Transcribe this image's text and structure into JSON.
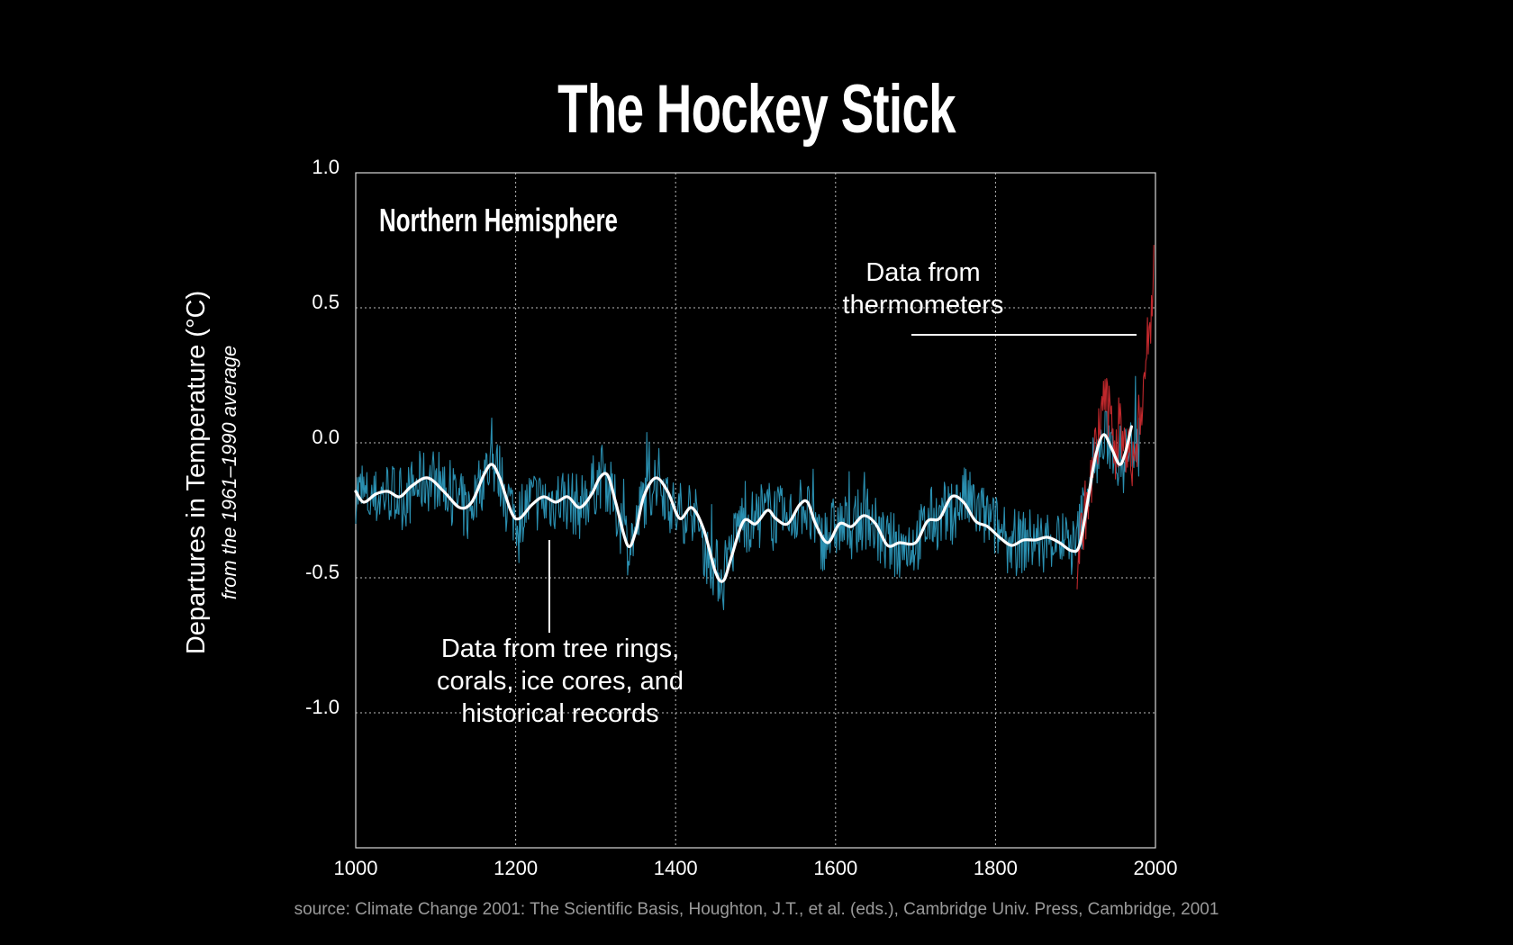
{
  "chart_data": {
    "type": "line",
    "title": "The Hockey Stick",
    "region_label": "Northern Hemisphere",
    "ylabel": "Departures in Temperature (°C)",
    "ylabel_sub": "from the 1961–1990 average",
    "xlim": [
      1000,
      2000
    ],
    "ylim": [
      -1.5,
      1.0
    ],
    "x_ticks": [
      1000,
      1200,
      1400,
      1600,
      1800,
      2000
    ],
    "y_ticks": [
      {
        "value": 1.0,
        "label": "1.0"
      },
      {
        "value": 0.5,
        "label": "0.5"
      },
      {
        "value": 0.0,
        "label": "0.0"
      },
      {
        "value": -0.5,
        "label": "-0.5"
      },
      {
        "value": -1.0,
        "label": "-1.0"
      }
    ],
    "grid": true,
    "annotations": {
      "proxy": [
        "Data from tree rings,",
        "corals, ice cores, and",
        "historical records"
      ],
      "thermo": [
        "Data from",
        "thermometers"
      ]
    },
    "series": [
      {
        "color": "#2a8fb0",
        "style": "noisy-annual",
        "x": [
          1000,
          1020,
          1040,
          1060,
          1080,
          1100,
          1120,
          1140,
          1160,
          1170,
          1180,
          1200,
          1220,
          1240,
          1260,
          1280,
          1300,
          1310,
          1320,
          1340,
          1350,
          1360,
          1380,
          1400,
          1420,
          1440,
          1460,
          1480,
          1500,
          1520,
          1540,
          1560,
          1580,
          1600,
          1620,
          1640,
          1660,
          1680,
          1700,
          1720,
          1740,
          1760,
          1780,
          1800,
          1820,
          1840,
          1860,
          1880,
          1900,
          1920,
          1940,
          1960,
          1980
        ],
        "y": [
          -0.18,
          -0.22,
          -0.18,
          -0.21,
          -0.15,
          -0.13,
          -0.19,
          -0.26,
          -0.12,
          -0.07,
          -0.12,
          -0.28,
          -0.21,
          -0.22,
          -0.2,
          -0.24,
          -0.15,
          -0.11,
          -0.2,
          -0.37,
          -0.33,
          -0.2,
          -0.13,
          -0.27,
          -0.24,
          -0.42,
          -0.51,
          -0.29,
          -0.29,
          -0.25,
          -0.3,
          -0.22,
          -0.37,
          -0.31,
          -0.31,
          -0.27,
          -0.37,
          -0.38,
          -0.37,
          -0.28,
          -0.28,
          -0.2,
          -0.26,
          -0.31,
          -0.38,
          -0.36,
          -0.36,
          -0.35,
          -0.4,
          -0.1,
          0.02,
          -0.07,
          0.05
        ]
      },
      {
        "color": "#c0282c",
        "style": "noisy-annual",
        "x": [
          1902,
          1910,
          1920,
          1930,
          1936,
          1940,
          1946,
          1950,
          1956,
          1960,
          1966,
          1970,
          1976,
          1980,
          1986,
          1990,
          1995,
          1998
        ],
        "y": [
          -0.45,
          -0.28,
          -0.15,
          0.05,
          0.2,
          0.1,
          0.12,
          -0.05,
          0.1,
          -0.05,
          0.05,
          -0.1,
          -0.05,
          0.1,
          0.25,
          0.35,
          0.5,
          0.7
        ]
      },
      {
        "color": "#ffffff",
        "style": "smooth",
        "x": [
          1000,
          1010,
          1025,
          1040,
          1055,
          1070,
          1090,
          1110,
          1130,
          1145,
          1160,
          1170,
          1180,
          1195,
          1205,
          1220,
          1235,
          1250,
          1265,
          1280,
          1295,
          1305,
          1315,
          1325,
          1340,
          1350,
          1360,
          1375,
          1390,
          1405,
          1420,
          1435,
          1450,
          1460,
          1470,
          1485,
          1500,
          1515,
          1525,
          1540,
          1555,
          1565,
          1575,
          1590,
          1605,
          1620,
          1635,
          1650,
          1665,
          1680,
          1700,
          1715,
          1730,
          1745,
          1760,
          1775,
          1790,
          1805,
          1820,
          1835,
          1850,
          1865,
          1880,
          1895,
          1905,
          1915,
          1925,
          1935,
          1945,
          1955,
          1962,
          1970
        ],
        "y": [
          -0.18,
          -0.22,
          -0.19,
          -0.18,
          -0.2,
          -0.16,
          -0.13,
          -0.18,
          -0.24,
          -0.22,
          -0.12,
          -0.08,
          -0.13,
          -0.26,
          -0.28,
          -0.23,
          -0.2,
          -0.22,
          -0.2,
          -0.24,
          -0.19,
          -0.13,
          -0.12,
          -0.22,
          -0.38,
          -0.33,
          -0.2,
          -0.13,
          -0.18,
          -0.28,
          -0.24,
          -0.32,
          -0.48,
          -0.51,
          -0.42,
          -0.29,
          -0.3,
          -0.25,
          -0.28,
          -0.3,
          -0.23,
          -0.22,
          -0.3,
          -0.37,
          -0.3,
          -0.31,
          -0.27,
          -0.3,
          -0.38,
          -0.37,
          -0.37,
          -0.29,
          -0.28,
          -0.2,
          -0.22,
          -0.29,
          -0.31,
          -0.35,
          -0.38,
          -0.36,
          -0.36,
          -0.35,
          -0.37,
          -0.4,
          -0.38,
          -0.22,
          -0.05,
          0.03,
          -0.02,
          -0.08,
          -0.04,
          0.06
        ]
      }
    ]
  },
  "source": "source: Climate Change 2001: The Scientific Basis, Houghton, J.T., et al. (eds.), Cambridge Univ. Press, Cambridge, 2001"
}
